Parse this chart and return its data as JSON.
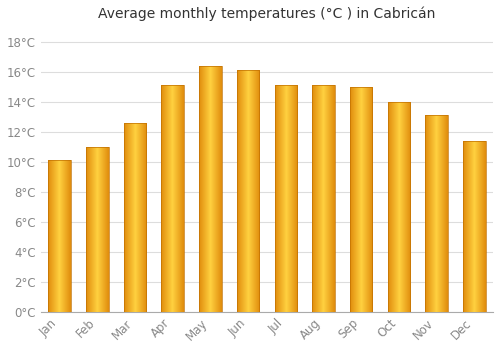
{
  "months": [
    "Jan",
    "Feb",
    "Mar",
    "Apr",
    "May",
    "Jun",
    "Jul",
    "Aug",
    "Sep",
    "Oct",
    "Nov",
    "Dec"
  ],
  "temperatures": [
    10.1,
    11.0,
    12.6,
    15.1,
    16.4,
    16.1,
    15.1,
    15.1,
    15.0,
    14.0,
    13.1,
    11.4
  ],
  "bar_color_face": "#FFC020",
  "bar_color_edge": "#E08000",
  "title": "Average monthly temperatures (°C ) in Cabricán",
  "ylim": [
    0,
    19
  ],
  "ytick_values": [
    0,
    2,
    4,
    6,
    8,
    10,
    12,
    14,
    16,
    18
  ],
  "ytick_labels": [
    "0°C",
    "2°C",
    "4°C",
    "6°C",
    "8°C",
    "10°C",
    "12°C",
    "14°C",
    "16°C",
    "18°C"
  ],
  "background_color": "#ffffff",
  "grid_color": "#dddddd",
  "title_fontsize": 10,
  "tick_fontsize": 8.5,
  "bar_width": 0.6
}
